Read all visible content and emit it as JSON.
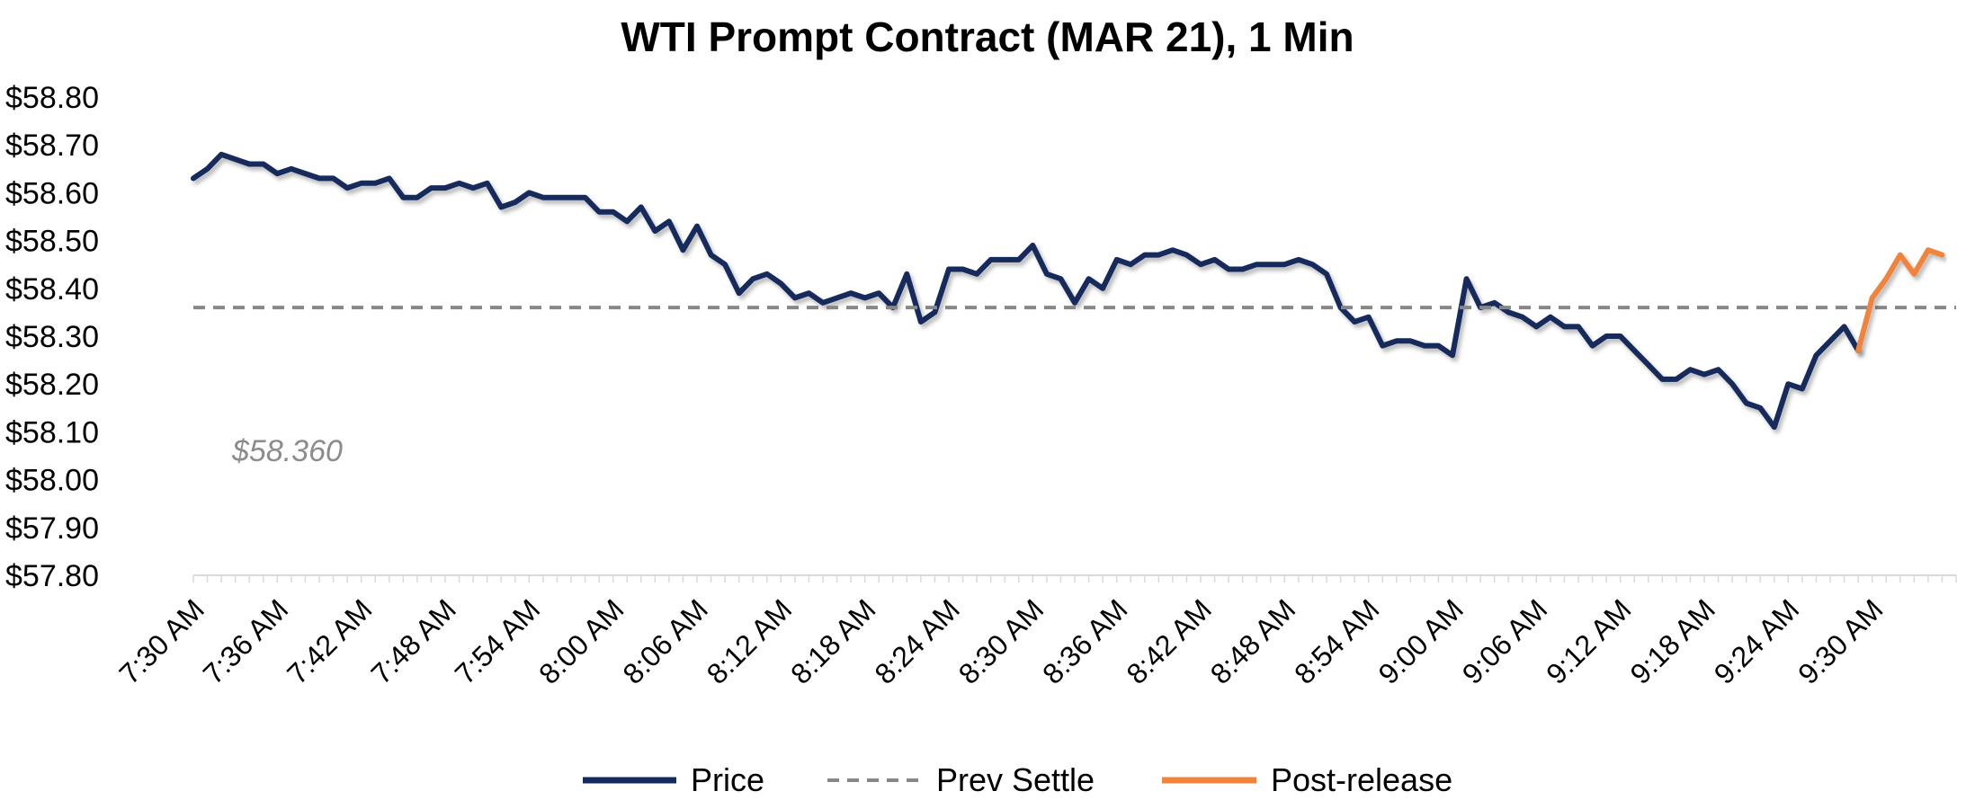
{
  "chart_data": {
    "type": "line",
    "title": "WTI Prompt Contract (MAR 21), 1 Min",
    "xlabel": "",
    "ylabel": "",
    "ylim": [
      57.8,
      58.8
    ],
    "yticks": [
      "$58.80",
      "$58.70",
      "$58.60",
      "$58.50",
      "$58.40",
      "$58.30",
      "$58.20",
      "$58.10",
      "$58.00",
      "$57.90",
      "$57.80"
    ],
    "x_tick_labels": [
      "7:30 AM",
      "7:36 AM",
      "7:42 AM",
      "7:48 AM",
      "7:54 AM",
      "8:00 AM",
      "8:06 AM",
      "8:12 AM",
      "8:18 AM",
      "8:24 AM",
      "8:30 AM",
      "8:36 AM",
      "8:42 AM",
      "8:48 AM",
      "8:54 AM",
      "9:00 AM",
      "9:06 AM",
      "9:12 AM",
      "9:18 AM",
      "9:24 AM",
      "9:30 AM"
    ],
    "x_start": "7:30 AM",
    "x_interval_minutes": 1,
    "annotation": "$58.360",
    "legend_position": "bottom",
    "series": [
      {
        "name": "Price",
        "color": "#142a5c",
        "start_index": 0,
        "values": [
          58.63,
          58.65,
          58.68,
          58.67,
          58.66,
          58.66,
          58.64,
          58.65,
          58.64,
          58.63,
          58.63,
          58.61,
          58.62,
          58.62,
          58.63,
          58.59,
          58.59,
          58.61,
          58.61,
          58.62,
          58.61,
          58.62,
          58.57,
          58.58,
          58.6,
          58.59,
          58.59,
          58.59,
          58.59,
          58.56,
          58.56,
          58.54,
          58.57,
          58.52,
          58.54,
          58.48,
          58.53,
          58.47,
          58.45,
          58.39,
          58.42,
          58.43,
          58.41,
          58.38,
          58.39,
          58.37,
          58.38,
          58.39,
          58.38,
          58.39,
          58.36,
          58.43,
          58.33,
          58.35,
          58.44,
          58.44,
          58.43,
          58.46,
          58.46,
          58.46,
          58.49,
          58.43,
          58.42,
          58.37,
          58.42,
          58.4,
          58.46,
          58.45,
          58.47,
          58.47,
          58.48,
          58.47,
          58.45,
          58.46,
          58.44,
          58.44,
          58.45,
          58.45,
          58.45,
          58.46,
          58.45,
          58.43,
          58.36,
          58.33,
          58.34,
          58.28,
          58.29,
          58.29,
          58.28,
          58.28,
          58.26,
          58.42,
          58.36,
          58.37,
          58.35,
          58.34,
          58.32,
          58.34,
          58.32,
          58.32,
          58.28,
          58.3,
          58.3,
          58.27,
          58.24,
          58.21,
          58.21,
          58.23,
          58.22,
          58.23,
          58.2,
          58.16,
          58.15,
          58.11,
          58.2,
          58.19,
          58.26,
          58.29,
          58.32,
          58.27
        ]
      },
      {
        "name": "Prev Settle",
        "color": "#878787",
        "constant": 58.36
      },
      {
        "name": "Post-release",
        "color": "#f0843c",
        "start_index": 119,
        "values": [
          58.27,
          58.38,
          58.42,
          58.47,
          58.43,
          58.48,
          58.47
        ]
      }
    ]
  }
}
